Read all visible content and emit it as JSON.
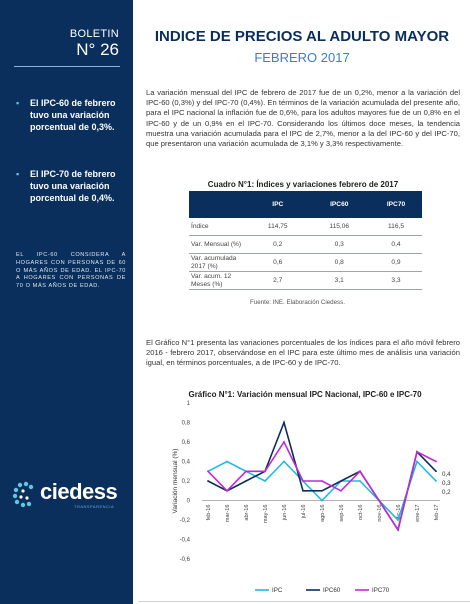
{
  "sidebar": {
    "boletin_label": "BOLETIN",
    "number": "N° 26",
    "bullets": [
      "El IPC-60 de febrero tuvo una variación porcentual de 0,3%.",
      "El IPC-70 de febrero tuvo una variación porcentual de 0,4%."
    ],
    "note": "EL IPC-60 CONSIDERA A HOGARES CON PERSONAS DE 60 O MÁS AÑOS DE EDAD. EL IPC-70 A HOGARES CON PERSONAS DE 70 O MÁS AÑOS DE EDAD.",
    "logo_name": "ciedess",
    "logo_tagline": "TRANSPARENCIA"
  },
  "header": {
    "title": "INDICE DE PRECIOS AL ADULTO MAYOR",
    "subtitle": "FEBRERO 2017"
  },
  "body": {
    "paragraph1": "La variación mensual del IPC de febrero de 2017 fue de un 0,2%, menor a la variación del IPC-60 (0,3%) y del IPC-70 (0,4%). En términos de la variación acumulada del presente año, para el IPC nacional la inflación fue de 0,6%, para los adultos mayores fue de un 0,8% en el IPC-60 y de un 0,9% en el IPC-70. Considerando los últimos doce meses, la tendencia muestra una variación acumulada para el IPC de 2,7%, menor a la del IPC-60 y del IPC-70, que presentaron una variación acumulada de 3,1% y 3,3% respectivamente.",
    "paragraph2": "El Gráfico N°1 presenta las variaciones porcentuales de los índices para el año móvil febrero 2016 - febrero 2017, observándose en el IPC para este último mes de análisis una variación igual, en términos porcentuales, a de IPC-60 y de IPC-70."
  },
  "table": {
    "caption": "Cuadro N°1: Índices y variaciones febrero de 2017",
    "headers": [
      "",
      "IPC",
      "IPC60",
      "IPC70"
    ],
    "rows": [
      [
        "Índice",
        "114,75",
        "115,06",
        "116,5"
      ],
      [
        "Var. Mensual (%)",
        "0,2",
        "0,3",
        "0,4"
      ],
      [
        "Var. acumulada 2017 (%)",
        "0,6",
        "0,8",
        "0,9"
      ],
      [
        "Var. acum. 12 Meses (%)",
        "2,7",
        "3,1",
        "3,3"
      ]
    ],
    "source": "Fuente: INE. Elaboración Ciedess."
  },
  "chart_data": {
    "type": "line",
    "title": "Gráfico N°1: Variación mensual IPC Nacional, IPC-60 e IPC-70",
    "xlabel": "",
    "ylabel": "Variación mensual (%)",
    "ylim": [
      -0.6,
      1.0
    ],
    "yticks": [
      "1",
      "0,8",
      "0,6",
      "0,4",
      "0,2",
      "0",
      "-0,2",
      "-0,4",
      "-0,6"
    ],
    "categories": [
      "feb-16",
      "mar-16",
      "abr-16",
      "may-16",
      "jun-16",
      "jul-16",
      "ago-16",
      "sep-16",
      "oct-16",
      "nov-16",
      "dic-16",
      "ene-17",
      "feb-17"
    ],
    "series": [
      {
        "name": "IPC",
        "color": "#21b9e0",
        "values": [
          0.3,
          0.4,
          0.3,
          0.2,
          0.4,
          0.2,
          0.0,
          0.2,
          0.2,
          0.0,
          -0.2,
          0.4,
          0.2
        ]
      },
      {
        "name": "IPC60",
        "color": "#0a2f5c",
        "values": [
          0.2,
          0.1,
          0.2,
          0.3,
          0.8,
          0.1,
          0.1,
          0.2,
          0.3,
          0.0,
          -0.3,
          0.5,
          0.3
        ]
      },
      {
        "name": "IPC70",
        "color": "#c02ad6",
        "values": [
          0.3,
          0.1,
          0.3,
          0.3,
          0.6,
          0.2,
          0.2,
          0.1,
          0.3,
          0.0,
          -0.3,
          0.5,
          0.4
        ]
      }
    ],
    "end_labels": [
      "0,4",
      "0,3",
      "0,2"
    ],
    "legend": "bottom",
    "grid": false
  }
}
